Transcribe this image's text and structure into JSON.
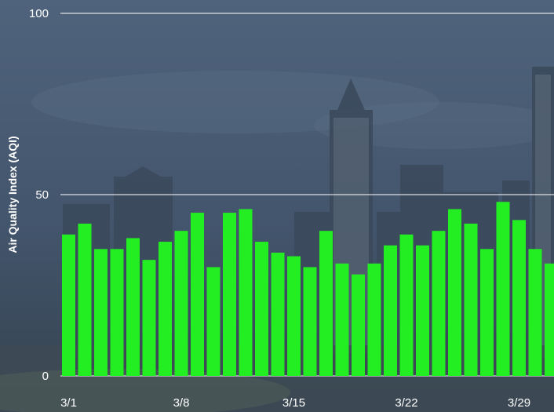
{
  "chart_data": {
    "type": "bar",
    "title": "",
    "xlabel": "",
    "ylabel": "Air Quality Index (AQI)",
    "ylim": [
      0,
      100
    ],
    "yticks": [
      0,
      50,
      100
    ],
    "xtick_labels": [
      "3/1",
      "3/8",
      "3/15",
      "3/22",
      "3/29"
    ],
    "xtick_category_index": [
      0,
      7,
      14,
      21,
      28
    ],
    "grid": true,
    "bar_color": "#22ee22",
    "categories": [
      "3/1",
      "3/2",
      "3/3",
      "3/4",
      "3/5",
      "3/6",
      "3/7",
      "3/8",
      "3/9",
      "3/10",
      "3/11",
      "3/12",
      "3/13",
      "3/14",
      "3/15",
      "3/16",
      "3/17",
      "3/18",
      "3/19",
      "3/20",
      "3/21",
      "3/22",
      "3/23",
      "3/24",
      "3/25",
      "3/26",
      "3/27",
      "3/28",
      "3/29",
      "3/30",
      "3/31"
    ],
    "values": [
      39,
      42,
      35,
      35,
      38,
      32,
      37,
      40,
      45,
      30,
      45,
      46,
      37,
      34,
      33,
      30,
      40,
      31,
      28,
      31,
      36,
      39,
      36,
      40,
      46,
      42,
      35,
      48,
      43,
      35,
      31
    ]
  },
  "colors": {
    "background_sky": "#4d6078",
    "background_city": "#3c4c60",
    "gridline": "#ffffff",
    "text": "#ffffff",
    "bar": "#22ee22"
  }
}
